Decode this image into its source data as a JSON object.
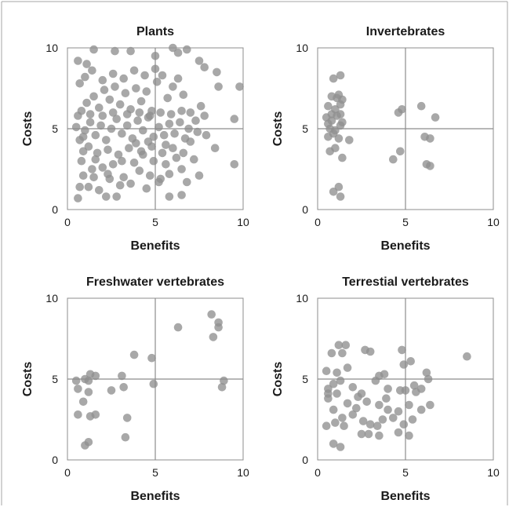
{
  "chart_data": [
    {
      "type": "scatter",
      "title": "Plants",
      "xlabel": "Benefits",
      "ylabel": "Costs",
      "xlim": [
        0,
        10
      ],
      "ylim": [
        0,
        10
      ],
      "xticks": [
        "0",
        "5",
        "10"
      ],
      "yticks": [
        "0",
        "5",
        "10"
      ],
      "reference_lines": {
        "x": 5,
        "y": 5
      },
      "grid": false,
      "legend": "none",
      "marker_color": "#8f8f8f",
      "points": [
        [
          0.6,
          9.2
        ],
        [
          1.1,
          9.0
        ],
        [
          1.5,
          9.9
        ],
        [
          2.7,
          9.8
        ],
        [
          3.6,
          9.8
        ],
        [
          5.0,
          9.5
        ],
        [
          6.0,
          10.0
        ],
        [
          6.3,
          9.7
        ],
        [
          6.8,
          9.9
        ],
        [
          7.5,
          9.2
        ],
        [
          7.8,
          8.8
        ],
        [
          8.5,
          8.5
        ],
        [
          8.6,
          7.6
        ],
        [
          9.8,
          7.6
        ],
        [
          9.5,
          5.6
        ],
        [
          9.5,
          2.8
        ],
        [
          7.6,
          6.4
        ],
        [
          8.4,
          3.8
        ],
        [
          7.0,
          4.2
        ],
        [
          6.5,
          2.5
        ],
        [
          5.3,
          1.9
        ],
        [
          6.8,
          1.7
        ],
        [
          6.5,
          0.9
        ],
        [
          5.8,
          0.8
        ],
        [
          5.2,
          1.7
        ],
        [
          4.3,
          3.4
        ],
        [
          2.8,
          0.8
        ],
        [
          2.2,
          0.8
        ],
        [
          1.8,
          1.2
        ],
        [
          0.6,
          0.7
        ],
        [
          0.7,
          1.4
        ],
        [
          1.2,
          1.4
        ],
        [
          0.9,
          2.1
        ],
        [
          1.4,
          2.5
        ],
        [
          0.8,
          3.0
        ],
        [
          1.6,
          3.1
        ],
        [
          2.0,
          2.6
        ],
        [
          2.6,
          2.8
        ],
        [
          3.2,
          2.0
        ],
        [
          3.6,
          1.6
        ],
        [
          3.8,
          2.9
        ],
        [
          4.1,
          2.4
        ],
        [
          4.7,
          2.1
        ],
        [
          4.9,
          3.0
        ],
        [
          5.6,
          2.8
        ],
        [
          6.2,
          3.2
        ],
        [
          6.6,
          3.5
        ],
        [
          7.2,
          3.1
        ],
        [
          0.7,
          4.3
        ],
        [
          1.0,
          4.9
        ],
        [
          1.3,
          5.4
        ],
        [
          1.6,
          4.6
        ],
        [
          1.9,
          5.2
        ],
        [
          2.2,
          4.3
        ],
        [
          2.5,
          5.0
        ],
        [
          2.8,
          5.6
        ],
        [
          3.1,
          4.7
        ],
        [
          3.4,
          5.2
        ],
        [
          3.7,
          4.4
        ],
        [
          4.0,
          5.5
        ],
        [
          4.3,
          4.9
        ],
        [
          4.6,
          5.7
        ],
        [
          4.9,
          4.5
        ],
        [
          5.2,
          5.1
        ],
        [
          5.5,
          4.6
        ],
        [
          5.8,
          5.3
        ],
        [
          6.1,
          4.7
        ],
        [
          6.4,
          5.4
        ],
        [
          6.9,
          5.0
        ],
        [
          7.3,
          5.5
        ],
        [
          7.8,
          5.8
        ],
        [
          0.8,
          6.1
        ],
        [
          1.1,
          6.6
        ],
        [
          1.5,
          7.0
        ],
        [
          1.8,
          6.3
        ],
        [
          2.1,
          7.4
        ],
        [
          2.4,
          6.8
        ],
        [
          2.7,
          7.6
        ],
        [
          3.0,
          6.5
        ],
        [
          3.3,
          7.2
        ],
        [
          3.6,
          6.2
        ],
        [
          3.9,
          7.5
        ],
        [
          4.2,
          6.7
        ],
        [
          4.5,
          7.3
        ],
        [
          4.8,
          6.1
        ],
        [
          5.1,
          7.9
        ],
        [
          5.4,
          8.3
        ],
        [
          5.7,
          6.9
        ],
        [
          6.0,
          7.6
        ],
        [
          6.3,
          8.1
        ],
        [
          6.6,
          7.1
        ],
        [
          0.7,
          7.8
        ],
        [
          1.0,
          8.2
        ],
        [
          1.4,
          8.6
        ],
        [
          2.0,
          8.0
        ],
        [
          2.6,
          8.4
        ],
        [
          3.2,
          8.1
        ],
        [
          3.8,
          8.6
        ],
        [
          4.4,
          8.3
        ],
        [
          5.0,
          8.7
        ],
        [
          0.9,
          3.6
        ],
        [
          1.2,
          3.9
        ],
        [
          1.7,
          3.5
        ],
        [
          2.3,
          3.7
        ],
        [
          2.9,
          3.4
        ],
        [
          3.5,
          3.8
        ],
        [
          4.2,
          3.6
        ],
        [
          4.8,
          3.9
        ],
        [
          5.4,
          3.5
        ],
        [
          6.0,
          3.8
        ],
        [
          0.6,
          5.8
        ],
        [
          1.3,
          5.9
        ],
        [
          2.0,
          5.8
        ],
        [
          2.6,
          6.0
        ],
        [
          3.4,
          5.9
        ],
        [
          4.1,
          6.0
        ],
        [
          4.7,
          5.8
        ],
        [
          5.3,
          6.0
        ],
        [
          5.9,
          5.9
        ],
        [
          6.5,
          6.1
        ],
        [
          7.0,
          6.0
        ],
        [
          1.5,
          2.0
        ],
        [
          2.4,
          1.9
        ],
        [
          3.0,
          1.5
        ],
        [
          4.5,
          1.3
        ],
        [
          5.8,
          2.2
        ],
        [
          7.5,
          2.1
        ],
        [
          7.9,
          4.6
        ],
        [
          0.5,
          5.1
        ],
        [
          0.9,
          4.5
        ],
        [
          2.3,
          2.2
        ],
        [
          3.1,
          3.0
        ],
        [
          3.9,
          4.1
        ],
        [
          4.6,
          4.2
        ],
        [
          5.6,
          4.0
        ],
        [
          6.7,
          4.4
        ],
        [
          7.4,
          4.8
        ]
      ]
    },
    {
      "type": "scatter",
      "title": "Invertebrates",
      "xlabel": "Benefits",
      "ylabel": "Costs",
      "xlim": [
        0,
        10
      ],
      "ylim": [
        0,
        10
      ],
      "xticks": [
        "0",
        "5",
        "10"
      ],
      "yticks": [
        "0",
        "5",
        "10"
      ],
      "reference_lines": {
        "x": 5,
        "y": 5
      },
      "grid": false,
      "legend": "none",
      "marker_color": "#8f8f8f",
      "points": [
        [
          0.9,
          8.1
        ],
        [
          1.3,
          8.3
        ],
        [
          0.8,
          7.0
        ],
        [
          1.2,
          7.1
        ],
        [
          1.4,
          6.8
        ],
        [
          0.6,
          6.4
        ],
        [
          1.0,
          6.2
        ],
        [
          1.3,
          6.5
        ],
        [
          0.5,
          5.7
        ],
        [
          0.8,
          5.5
        ],
        [
          1.1,
          5.8
        ],
        [
          1.4,
          5.4
        ],
        [
          0.7,
          5.0
        ],
        [
          1.0,
          4.9
        ],
        [
          1.3,
          5.2
        ],
        [
          0.6,
          4.5
        ],
        [
          0.9,
          4.7
        ],
        [
          1.2,
          4.4
        ],
        [
          1.8,
          4.3
        ],
        [
          1.0,
          3.8
        ],
        [
          0.7,
          3.6
        ],
        [
          1.4,
          3.2
        ],
        [
          1.2,
          1.4
        ],
        [
          0.9,
          1.1
        ],
        [
          1.3,
          0.8
        ],
        [
          4.6,
          6.0
        ],
        [
          4.8,
          6.2
        ],
        [
          5.9,
          6.4
        ],
        [
          6.7,
          5.7
        ],
        [
          6.1,
          4.5
        ],
        [
          6.4,
          4.4
        ],
        [
          4.7,
          3.6
        ],
        [
          4.3,
          3.1
        ],
        [
          6.2,
          2.8
        ],
        [
          6.4,
          2.7
        ],
        [
          1.1,
          6.9
        ],
        [
          0.8,
          5.9
        ],
        [
          1.3,
          5.9
        ],
        [
          0.6,
          5.3
        ]
      ]
    },
    {
      "type": "scatter",
      "title": "Freshwater vertebrates",
      "xlabel": "Benefits",
      "ylabel": "Costs",
      "xlim": [
        0,
        10
      ],
      "ylim": [
        0,
        10
      ],
      "xticks": [
        "0",
        "5",
        "10"
      ],
      "yticks": [
        "0",
        "5",
        "10"
      ],
      "reference_lines": {
        "x": 5,
        "y": 5
      },
      "grid": false,
      "legend": "none",
      "marker_color": "#8f8f8f",
      "points": [
        [
          0.5,
          4.9
        ],
        [
          0.6,
          4.4
        ],
        [
          0.6,
          2.8
        ],
        [
          0.9,
          3.6
        ],
        [
          1.0,
          5.0
        ],
        [
          1.2,
          4.9
        ],
        [
          1.3,
          5.3
        ],
        [
          1.2,
          4.2
        ],
        [
          1.6,
          5.2
        ],
        [
          1.6,
          2.8
        ],
        [
          1.3,
          2.7
        ],
        [
          1.2,
          1.1
        ],
        [
          1.0,
          0.9
        ],
        [
          2.5,
          4.3
        ],
        [
          3.1,
          5.2
        ],
        [
          3.2,
          4.5
        ],
        [
          3.4,
          2.6
        ],
        [
          3.3,
          1.4
        ],
        [
          3.8,
          6.5
        ],
        [
          4.8,
          6.3
        ],
        [
          4.9,
          4.7
        ],
        [
          6.3,
          8.2
        ],
        [
          8.2,
          9.0
        ],
        [
          8.6,
          8.5
        ],
        [
          8.6,
          8.2
        ],
        [
          8.3,
          7.6
        ],
        [
          8.9,
          4.9
        ],
        [
          8.8,
          4.5
        ]
      ]
    },
    {
      "type": "scatter",
      "title": "Terrestial vertebrates",
      "xlabel": "Benefits",
      "ylabel": "Costs",
      "xlim": [
        0,
        10
      ],
      "ylim": [
        0,
        10
      ],
      "xticks": [
        "0",
        "5",
        "10"
      ],
      "yticks": [
        "0",
        "5",
        "10"
      ],
      "reference_lines": {
        "x": 5,
        "y": 5
      },
      "grid": false,
      "legend": "none",
      "marker_color": "#8f8f8f",
      "points": [
        [
          1.2,
          7.1
        ],
        [
          1.6,
          7.1
        ],
        [
          0.8,
          6.6
        ],
        [
          1.4,
          6.6
        ],
        [
          2.7,
          6.8
        ],
        [
          3.0,
          6.7
        ],
        [
          4.8,
          6.8
        ],
        [
          5.3,
          6.1
        ],
        [
          8.5,
          6.4
        ],
        [
          0.5,
          5.5
        ],
        [
          1.1,
          5.4
        ],
        [
          1.7,
          5.7
        ],
        [
          3.5,
          5.2
        ],
        [
          3.8,
          5.3
        ],
        [
          4.9,
          5.9
        ],
        [
          6.2,
          5.4
        ],
        [
          6.3,
          5.0
        ],
        [
          0.6,
          4.4
        ],
        [
          0.9,
          4.7
        ],
        [
          1.3,
          4.9
        ],
        [
          2.0,
          4.5
        ],
        [
          2.5,
          4.1
        ],
        [
          3.3,
          4.9
        ],
        [
          4.0,
          4.4
        ],
        [
          4.7,
          4.3
        ],
        [
          5.0,
          4.3
        ],
        [
          5.5,
          4.6
        ],
        [
          5.9,
          4.4
        ],
        [
          0.6,
          3.8
        ],
        [
          1.1,
          4.1
        ],
        [
          1.7,
          3.5
        ],
        [
          2.2,
          3.2
        ],
        [
          2.8,
          3.6
        ],
        [
          3.5,
          3.4
        ],
        [
          4.0,
          3.1
        ],
        [
          4.6,
          3.0
        ],
        [
          5.2,
          3.4
        ],
        [
          5.9,
          3.1
        ],
        [
          6.4,
          3.4
        ],
        [
          0.9,
          3.1
        ],
        [
          1.4,
          2.6
        ],
        [
          2.0,
          2.8
        ],
        [
          2.6,
          2.4
        ],
        [
          3.0,
          2.2
        ],
        [
          3.4,
          2.1
        ],
        [
          3.7,
          2.5
        ],
        [
          4.3,
          2.6
        ],
        [
          4.9,
          2.2
        ],
        [
          5.4,
          2.5
        ],
        [
          0.5,
          2.1
        ],
        [
          1.0,
          2.3
        ],
        [
          1.5,
          2.1
        ],
        [
          2.5,
          1.6
        ],
        [
          2.9,
          1.6
        ],
        [
          3.5,
          1.5
        ],
        [
          4.6,
          1.7
        ],
        [
          5.2,
          1.5
        ],
        [
          0.9,
          1.0
        ],
        [
          1.3,
          0.8
        ],
        [
          0.6,
          4.1
        ],
        [
          2.3,
          3.9
        ],
        [
          3.9,
          3.8
        ],
        [
          5.6,
          4.2
        ]
      ]
    }
  ]
}
